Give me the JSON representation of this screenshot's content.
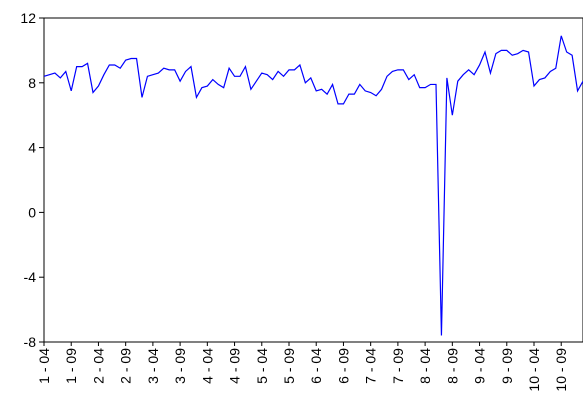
{
  "chart_data": {
    "type": "line",
    "categories": [
      "1 - 04",
      null,
      null,
      null,
      null,
      "1 - 09",
      null,
      null,
      null,
      null,
      "2 - 04",
      null,
      null,
      null,
      null,
      "2 - 09",
      null,
      null,
      null,
      null,
      "3 - 04",
      null,
      null,
      null,
      null,
      "3 - 09",
      null,
      null,
      null,
      null,
      "4 - 04",
      null,
      null,
      null,
      null,
      "4 - 09",
      null,
      null,
      null,
      null,
      "5 - 04",
      null,
      null,
      null,
      null,
      "5 - 09",
      null,
      null,
      null,
      null,
      "6 - 04",
      null,
      null,
      null,
      null,
      "6 - 09",
      null,
      null,
      null,
      null,
      "7 - 04",
      null,
      null,
      null,
      null,
      "7 - 09",
      null,
      null,
      null,
      null,
      "8 - 04",
      null,
      null,
      null,
      null,
      "8 - 09",
      null,
      null,
      null,
      null,
      "9 - 04",
      null,
      null,
      null,
      null,
      "9 - 09",
      null,
      null,
      null,
      null,
      "10 - 04",
      null,
      null,
      null,
      null,
      "10 - 09",
      null,
      null,
      null,
      null
    ],
    "series": [
      {
        "color": "#0000ff",
        "values": [
          8.4,
          8.5,
          8.6,
          8.3,
          8.7,
          7.5,
          9.0,
          9.0,
          9.2,
          7.4,
          7.8,
          8.5,
          9.1,
          9.1,
          8.9,
          9.4,
          9.5,
          9.5,
          7.1,
          8.4,
          8.5,
          8.6,
          8.9,
          8.8,
          8.8,
          8.1,
          8.7,
          9.0,
          7.1,
          7.7,
          7.8,
          8.2,
          7.9,
          7.7,
          8.9,
          8.4,
          8.4,
          9.0,
          7.6,
          8.1,
          8.6,
          8.5,
          8.2,
          8.7,
          8.4,
          8.8,
          8.8,
          9.1,
          8.0,
          8.3,
          7.5,
          7.6,
          7.3,
          7.9,
          6.7,
          6.7,
          7.3,
          7.3,
          7.9,
          7.5,
          7.4,
          7.2,
          7.6,
          8.4,
          8.7,
          8.8,
          8.8,
          8.2,
          8.5,
          7.7,
          7.7,
          7.9,
          7.9,
          -7.6,
          8.3,
          6.0,
          8.1,
          8.5,
          8.8,
          8.5,
          9.1,
          9.9,
          8.6,
          9.8,
          10.0,
          10.0,
          9.7,
          9.8,
          10.0,
          9.9,
          7.8,
          8.2,
          8.3,
          8.7,
          8.9,
          10.9,
          9.9,
          9.7,
          7.5,
          8.1
        ]
      }
    ],
    "ylim": [
      -8,
      12
    ],
    "yticks": [
      -8,
      -4,
      0,
      4,
      8,
      12
    ],
    "grid": false
  }
}
